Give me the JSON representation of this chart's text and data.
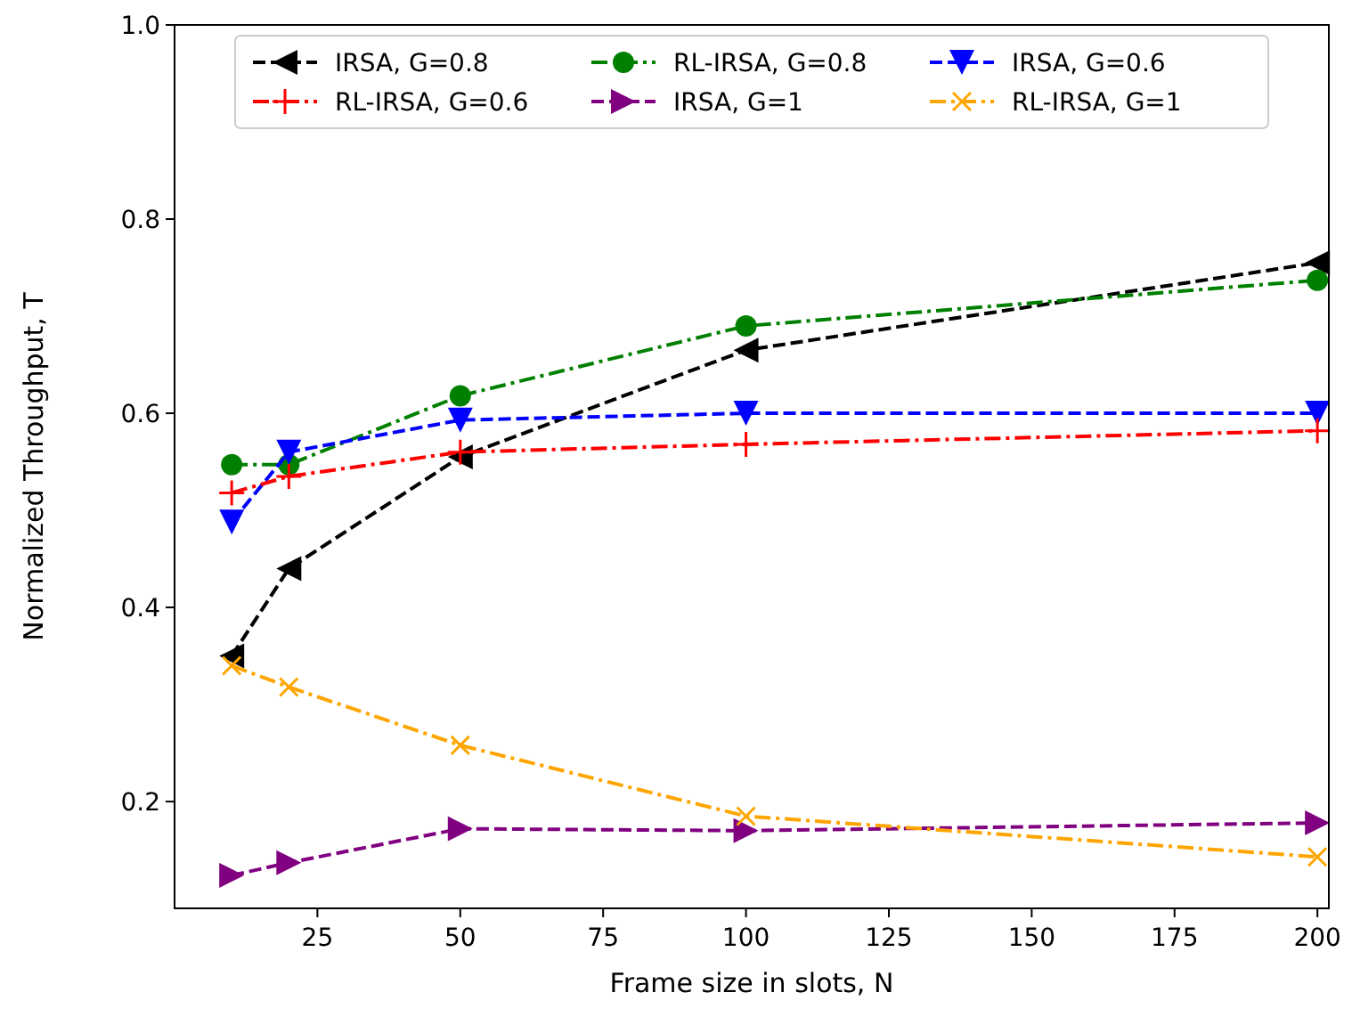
{
  "chart_data": {
    "type": "line",
    "xlabel": "Frame size in slots, N",
    "ylabel": "Normalized Throughput, T",
    "x": [
      10,
      20,
      50,
      100,
      200
    ],
    "xlim": [
      0,
      202
    ],
    "xticks": [
      25,
      50,
      75,
      100,
      125,
      150,
      175,
      200
    ],
    "ylim": [
      0.09,
      1.0
    ],
    "yticks": [
      0.2,
      0.4,
      0.6,
      0.8,
      {
        "value": 1.0,
        "label": "1.0"
      }
    ],
    "grid": false,
    "legend": "top",
    "series": [
      {
        "name": "IRSA, G=0.8",
        "color": "#000000",
        "marker": "triangle-left",
        "line_style": "dashed",
        "values": [
          0.35,
          0.44,
          0.555,
          0.665,
          0.755
        ]
      },
      {
        "name": "RL-IRSA, G=0.8",
        "color": "#008000",
        "marker": "circle",
        "line_style": "dashdot",
        "values": [
          0.547,
          0.547,
          0.618,
          0.69,
          0.737
        ]
      },
      {
        "name": "IRSA, G=0.6",
        "color": "#0000ff",
        "marker": "triangle-down",
        "line_style": "dashed",
        "values": [
          0.488,
          0.56,
          0.593,
          0.6,
          0.6
        ]
      },
      {
        "name": "RL-IRSA, G=0.6",
        "color": "#ff0000",
        "marker": "plus",
        "line_style": "dashdot",
        "values": [
          0.518,
          0.535,
          0.56,
          0.568,
          0.582
        ]
      },
      {
        "name": "IRSA, G=1",
        "color": "#800080",
        "marker": "triangle-right",
        "line_style": "dashed",
        "values": [
          0.124,
          0.137,
          0.172,
          0.17,
          0.178
        ]
      },
      {
        "name": "RL-IRSA, G=1",
        "color": "#ffa500",
        "marker": "x",
        "line_style": "dashdot",
        "values": [
          0.34,
          0.318,
          0.258,
          0.185,
          0.143
        ]
      }
    ]
  }
}
